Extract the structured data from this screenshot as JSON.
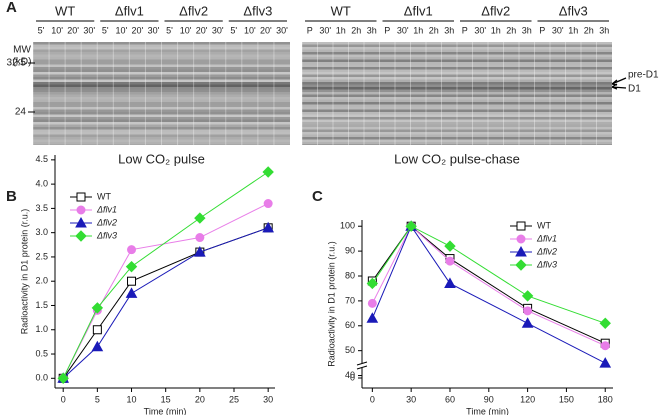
{
  "panel_a": {
    "label": "A",
    "mw_label": "MW",
    "mw_unit": "(kD)",
    "mw_markers": [
      32.5,
      24
    ],
    "band_labels": [
      "pre-D1",
      "D1"
    ],
    "gels": [
      {
        "caption": "Low CO₂ pulse",
        "groups": [
          {
            "name": "WT",
            "lanes": [
              "5'",
              "10'",
              "20'",
              "30'"
            ]
          },
          {
            "name": "Δflv1",
            "lanes": [
              "5'",
              "10'",
              "20'",
              "30'"
            ]
          },
          {
            "name": "Δflv2",
            "lanes": [
              "5'",
              "10'",
              "20'",
              "30'"
            ]
          },
          {
            "name": "Δflv3",
            "lanes": [
              "5'",
              "10'",
              "20'",
              "30'"
            ]
          }
        ]
      },
      {
        "caption": "Low CO₂ pulse-chase",
        "groups": [
          {
            "name": "WT",
            "lanes": [
              "P",
              "30'",
              "1h",
              "2h",
              "3h"
            ]
          },
          {
            "name": "Δflv1",
            "lanes": [
              "P",
              "30'",
              "1h",
              "2h",
              "3h"
            ]
          },
          {
            "name": "Δflv2",
            "lanes": [
              "P",
              "30'",
              "1h",
              "2h",
              "3h"
            ]
          },
          {
            "name": "Δflv3",
            "lanes": [
              "P",
              "30'",
              "1h",
              "2h",
              "3h"
            ]
          }
        ]
      }
    ]
  },
  "chart_data": [
    {
      "type": "line",
      "panel": "B",
      "x_label": "Time (min)",
      "y_label": "Radioactivity in D1 protein (r.u.)",
      "x": [
        0,
        5,
        10,
        20,
        30
      ],
      "xlim": [
        -1.2,
        31
      ],
      "xticks": [
        0,
        5,
        10,
        15,
        20,
        25,
        30
      ],
      "ylim": [
        -0.2,
        4.6
      ],
      "yticks": [
        {
          "value": 0,
          "label": "0.0"
        },
        0.5,
        {
          "value": 1,
          "label": "1.0"
        },
        1.5,
        {
          "value": 2,
          "label": "2.0"
        },
        2.5,
        {
          "value": 3,
          "label": "3.0"
        },
        3.5,
        {
          "value": 4,
          "label": "4.0"
        },
        4.5
      ],
      "series": [
        {
          "name": "WT",
          "color": "#000000",
          "marker": "square",
          "values": [
            0,
            1.0,
            2.0,
            2.6,
            3.1
          ]
        },
        {
          "name": "Δflv1",
          "color": "#e87de8",
          "marker": "circle",
          "values": [
            0,
            1.4,
            2.65,
            2.9,
            3.6
          ]
        },
        {
          "name": "Δflv2",
          "color": "#1a1ab8",
          "marker": "triangle",
          "values": [
            0,
            0.65,
            1.75,
            2.6,
            3.1
          ]
        },
        {
          "name": "Δflv3",
          "color": "#33dd33",
          "marker": "diamond",
          "values": [
            0,
            1.45,
            2.3,
            3.3,
            4.25
          ]
        }
      ]
    },
    {
      "type": "line",
      "panel": "C",
      "x_label": "Time (min)",
      "y_label": "Radioactivity in D1 protein (r.u.)",
      "x": [
        0,
        30,
        60,
        120,
        180
      ],
      "xlim": [
        -8,
        186
      ],
      "xticks": [
        0,
        30,
        60,
        90,
        120,
        150,
        180
      ],
      "ylim": [
        35,
        102.5
      ],
      "yticks": [
        40,
        50,
        60,
        70,
        80,
        90,
        100
      ],
      "ybreak_tick": 0,
      "series": [
        {
          "name": "WT",
          "color": "#000000",
          "marker": "square",
          "values": [
            78,
            100,
            87,
            67,
            53
          ]
        },
        {
          "name": "Δflv1",
          "color": "#e87de8",
          "marker": "circle",
          "values": [
            69,
            100,
            86,
            66,
            52
          ]
        },
        {
          "name": "Δflv2",
          "color": "#1a1ab8",
          "marker": "triangle",
          "values": [
            63,
            100,
            77,
            61,
            45
          ]
        },
        {
          "name": "Δflv3",
          "color": "#33dd33",
          "marker": "diamond",
          "values": [
            77,
            100,
            92,
            72,
            61
          ]
        }
      ]
    }
  ]
}
